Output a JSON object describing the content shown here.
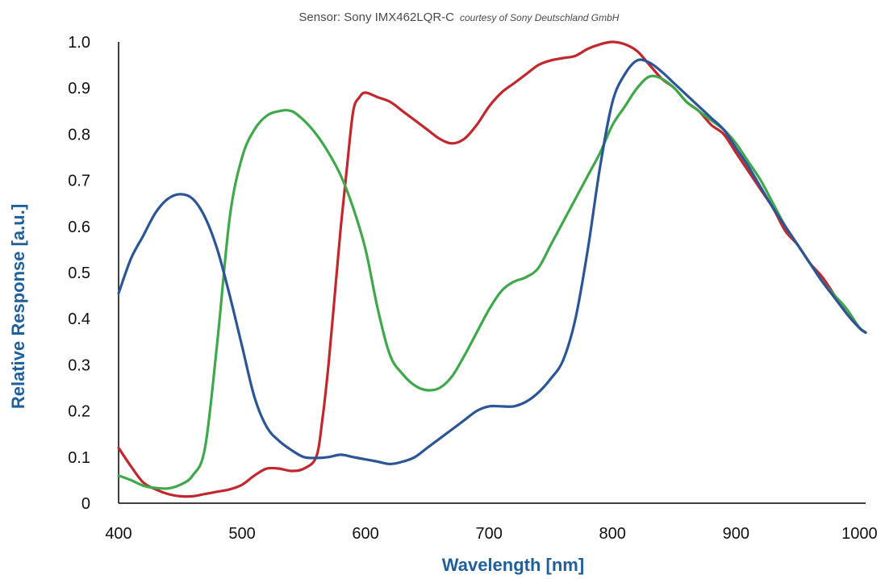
{
  "chart_data": {
    "type": "line",
    "title": "Sensor: Sony IMX462LQR-C",
    "subtitle": "courtesy of Sony Deutschland GmbH",
    "xlabel": "Wavelength [nm]",
    "ylabel": "Relative Response [a.u.]",
    "xlim": [
      400,
      1005
    ],
    "ylim": [
      0,
      1.0
    ],
    "x_ticks": [
      400,
      500,
      600,
      700,
      800,
      900,
      1000
    ],
    "y_ticks": [
      0,
      0.1,
      0.2,
      0.3,
      0.4,
      0.5,
      0.6,
      0.7,
      0.8,
      0.9,
      1.0
    ],
    "x_tick_labels": [
      "400",
      "500",
      "600",
      "700",
      "800",
      "900",
      "1000"
    ],
    "y_tick_labels": [
      "0",
      "0.1",
      "0.2",
      "0.3",
      "0.4",
      "0.5",
      "0.6",
      "0.7",
      "0.8",
      "0.9",
      "1.0"
    ],
    "grid": false,
    "legend": "none",
    "series": [
      {
        "color": "#c1272d",
        "x": [
          400,
          410,
          420,
          430,
          440,
          450,
          460,
          470,
          480,
          490,
          500,
          510,
          520,
          530,
          540,
          550,
          560,
          565,
          570,
          575,
          580,
          585,
          590,
          595,
          600,
          610,
          620,
          630,
          640,
          650,
          660,
          670,
          680,
          690,
          700,
          710,
          720,
          730,
          740,
          750,
          760,
          770,
          780,
          790,
          800,
          810,
          820,
          830,
          840,
          850,
          860,
          870,
          880,
          890,
          900,
          910,
          920,
          930,
          940,
          950,
          960,
          970,
          980,
          990,
          1000,
          1005
        ],
        "values": [
          0.12,
          0.08,
          0.045,
          0.03,
          0.02,
          0.015,
          0.015,
          0.02,
          0.025,
          0.03,
          0.04,
          0.06,
          0.075,
          0.075,
          0.07,
          0.075,
          0.1,
          0.18,
          0.3,
          0.45,
          0.6,
          0.73,
          0.85,
          0.88,
          0.89,
          0.88,
          0.87,
          0.85,
          0.83,
          0.81,
          0.79,
          0.78,
          0.79,
          0.82,
          0.86,
          0.89,
          0.91,
          0.93,
          0.95,
          0.96,
          0.965,
          0.97,
          0.985,
          0.995,
          1.0,
          0.995,
          0.98,
          0.95,
          0.92,
          0.9,
          0.87,
          0.85,
          0.82,
          0.8,
          0.76,
          0.72,
          0.68,
          0.64,
          0.59,
          0.56,
          0.52,
          0.49,
          0.45,
          0.41,
          0.38,
          0.37
        ]
      },
      {
        "color": "#3ea84a",
        "x": [
          400,
          410,
          420,
          430,
          440,
          450,
          460,
          470,
          480,
          490,
          500,
          510,
          520,
          530,
          540,
          550,
          560,
          570,
          580,
          590,
          600,
          610,
          620,
          630,
          640,
          650,
          660,
          670,
          680,
          690,
          700,
          710,
          720,
          730,
          740,
          750,
          760,
          770,
          780,
          790,
          800,
          810,
          820,
          830,
          840,
          850,
          860,
          870,
          880,
          890,
          900,
          910,
          920,
          930,
          940,
          950,
          960,
          970,
          980,
          990,
          1000,
          1005
        ],
        "values": [
          0.06,
          0.05,
          0.038,
          0.033,
          0.032,
          0.04,
          0.06,
          0.12,
          0.35,
          0.62,
          0.75,
          0.81,
          0.84,
          0.85,
          0.85,
          0.83,
          0.8,
          0.76,
          0.71,
          0.64,
          0.55,
          0.42,
          0.32,
          0.28,
          0.255,
          0.245,
          0.25,
          0.275,
          0.32,
          0.37,
          0.42,
          0.46,
          0.48,
          0.49,
          0.51,
          0.56,
          0.61,
          0.66,
          0.71,
          0.76,
          0.82,
          0.86,
          0.9,
          0.925,
          0.92,
          0.9,
          0.87,
          0.85,
          0.83,
          0.81,
          0.78,
          0.74,
          0.7,
          0.65,
          0.6,
          0.56,
          0.52,
          0.48,
          0.45,
          0.42,
          0.38,
          0.37
        ]
      },
      {
        "color": "#2b5597",
        "x": [
          400,
          410,
          420,
          430,
          440,
          450,
          460,
          470,
          480,
          490,
          500,
          510,
          520,
          530,
          540,
          550,
          560,
          570,
          580,
          590,
          600,
          610,
          620,
          630,
          640,
          650,
          660,
          670,
          680,
          690,
          700,
          710,
          720,
          730,
          740,
          750,
          760,
          770,
          780,
          790,
          800,
          810,
          820,
          830,
          840,
          850,
          860,
          870,
          880,
          890,
          900,
          910,
          920,
          930,
          940,
          950,
          960,
          970,
          980,
          990,
          1000,
          1005
        ],
        "values": [
          0.455,
          0.53,
          0.58,
          0.63,
          0.66,
          0.67,
          0.66,
          0.62,
          0.55,
          0.45,
          0.34,
          0.23,
          0.165,
          0.135,
          0.115,
          0.1,
          0.098,
          0.1,
          0.105,
          0.1,
          0.095,
          0.09,
          0.085,
          0.09,
          0.1,
          0.12,
          0.14,
          0.16,
          0.18,
          0.2,
          0.21,
          0.21,
          0.21,
          0.22,
          0.24,
          0.27,
          0.31,
          0.4,
          0.55,
          0.73,
          0.87,
          0.93,
          0.96,
          0.955,
          0.935,
          0.91,
          0.885,
          0.86,
          0.835,
          0.81,
          0.77,
          0.73,
          0.685,
          0.64,
          0.6,
          0.56,
          0.52,
          0.48,
          0.445,
          0.41,
          0.38,
          0.37
        ]
      }
    ]
  }
}
